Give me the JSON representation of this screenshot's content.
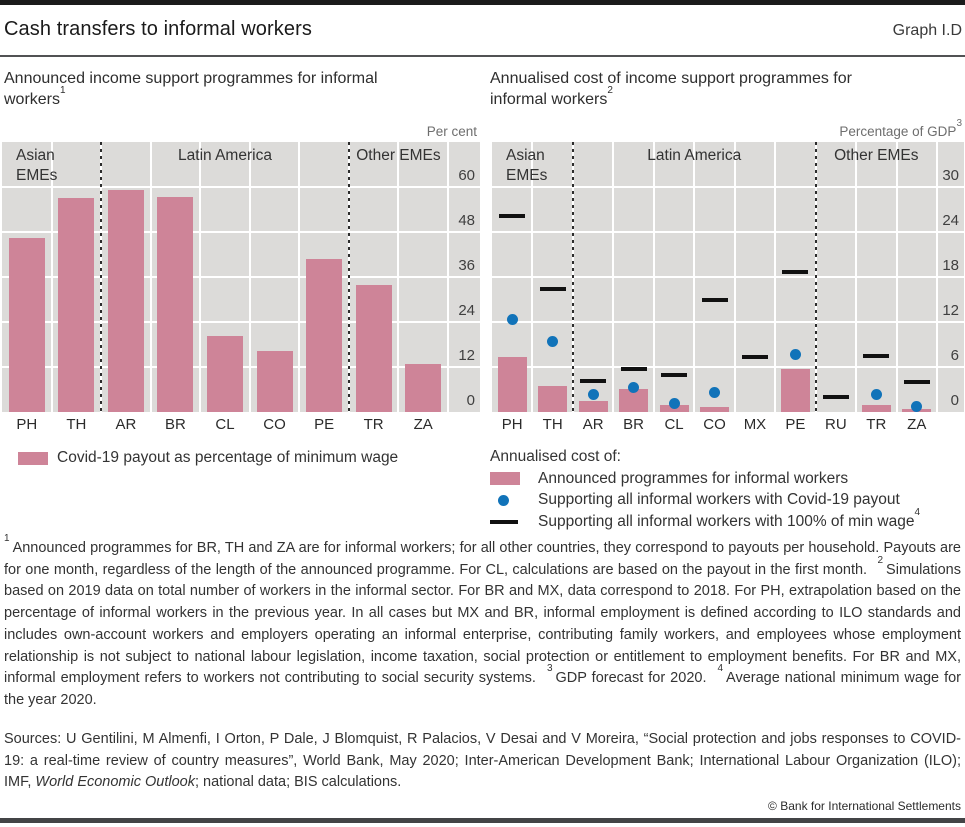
{
  "header": {
    "title": "Cash transfers to informal workers",
    "graph_label": "Graph I.D"
  },
  "left_panel": {
    "subtitle_text": "Announced income support programmes for informal workers",
    "subtitle_sup": "1",
    "unit_text": "Per cent",
    "legend": [
      {
        "marker": "bar-swatch",
        "label": "Covid-19 payout as percentage of minimum wage"
      }
    ]
  },
  "right_panel": {
    "subtitle_text": "Annualised cost of income support programmes for informal workers",
    "subtitle_sup": "2",
    "unit_text": "Percentage of GDP",
    "unit_sup": "3",
    "legend_title": "Annualised cost of:",
    "legend": [
      {
        "marker": "bar-swatch",
        "label": "Announced programmes for informal workers"
      },
      {
        "marker": "blue-dot",
        "label": "Supporting all informal workers with Covid-19 payout"
      },
      {
        "marker": "black-dash",
        "label": "Supporting all informal workers with 100% of min wage",
        "sup": "4"
      }
    ]
  },
  "chart_data": [
    {
      "type": "bar",
      "title": "Announced income support programmes for informal workers",
      "ylabel": "Per cent",
      "categories": [
        "PH",
        "TH",
        "AR",
        "BR",
        "CL",
        "CO",
        "PE",
        "TR",
        "ZA"
      ],
      "values": [
        46.5,
        57.2,
        59.2,
        57.3,
        20.2,
        16.4,
        40.8,
        34.0,
        12.7
      ],
      "series_label": "Covid-19 payout as percentage of minimum wage",
      "groups": [
        {
          "label": "Asian\nEMEs",
          "span": [
            0,
            1
          ],
          "align": "left"
        },
        {
          "label": "Latin America",
          "span": [
            2,
            6
          ],
          "align": "center"
        },
        {
          "label": "Other EMEs",
          "span": [
            7,
            8
          ],
          "align": "center"
        }
      ],
      "ylim": [
        0,
        72
      ],
      "yticks": [
        0,
        12,
        24,
        36,
        48,
        60
      ],
      "grid": true,
      "legend_position": "below"
    },
    {
      "type": "bar",
      "title": "Annualised cost of income support programmes for informal workers",
      "ylabel": "Percentage of GDP",
      "categories": [
        "PH",
        "TH",
        "AR",
        "BR",
        "CL",
        "CO",
        "MX",
        "PE",
        "RU",
        "TR",
        "ZA"
      ],
      "series": [
        {
          "name": "Announced programmes for informal workers",
          "marker": "bar",
          "values": [
            7.4,
            3.5,
            1.5,
            3.1,
            0.9,
            0.7,
            null,
            5.7,
            null,
            0.9,
            0.4
          ]
        },
        {
          "name": "Supporting all informal workers with Covid-19 payout",
          "marker": "dot",
          "values": [
            12.3,
            9.4,
            2.4,
            3.3,
            1.1,
            2.6,
            null,
            7.7,
            null,
            2.4,
            0.7
          ]
        },
        {
          "name": "Supporting all informal workers with 100% of min wage",
          "marker": "dash",
          "values": [
            26.2,
            16.4,
            4.1,
            5.7,
            4.9,
            15.0,
            7.3,
            18.7,
            2.0,
            7.5,
            4.0
          ]
        }
      ],
      "groups": [
        {
          "label": "Asian\nEMEs",
          "span": [
            0,
            1
          ],
          "align": "left"
        },
        {
          "label": "Latin America",
          "span": [
            2,
            7
          ],
          "align": "center"
        },
        {
          "label": "Other EMEs",
          "span": [
            8,
            10
          ],
          "align": "center"
        }
      ],
      "ylim": [
        0,
        36
      ],
      "yticks": [
        0,
        6,
        12,
        18,
        24,
        30
      ],
      "grid": true,
      "legend_position": "below"
    }
  ],
  "footnotes": [
    {
      "sup": "1",
      "text": "Announced programmes for BR, TH and ZA are for informal workers; for all other countries, they correspond to payouts per household. Payouts are for one month, regardless of the length of the announced programme. For CL, calculations are based on the payout in the first month."
    },
    {
      "sup": "2",
      "text": "Simulations based on 2019 data on total number of workers in the informal sector. For BR and MX, data correspond to 2018. For PH, extrapolation based on the percentage of informal workers in the previous year. In all cases but MX and BR, informal employment is defined according to ILO standards and includes own-account workers and employers operating an informal enterprise, contributing family workers, and employees whose employment relationship is not subject to national labour legislation, income taxation, social protection or entitlement to employment benefits. For BR and MX, informal employment refers to workers not contributing to social security systems."
    },
    {
      "sup": "3",
      "text": "GDP forecast for 2020."
    },
    {
      "sup": "4",
      "text": "Average national minimum wage for the year 2020."
    }
  ],
  "sources_segments": [
    {
      "text": "Sources: U Gentilini, M Almenfi, I Orton, P Dale, J Blomquist, R Palacios, V Desai and V Moreira, “Social protection and jobs responses to COVID-19: a real-time review of country measures”, World Bank, May 2020; Inter-American Development Bank; International Labour Organization (ILO); IMF, ",
      "italic": false
    },
    {
      "text": "World Economic Outlook",
      "italic": true
    },
    {
      "text": "; national data; BIS calculations.",
      "italic": false
    }
  ],
  "copyright": "© Bank for International Settlements",
  "colors": {
    "bar_pink": "#ce8498",
    "dot_blue": "#1173b9",
    "dash_black": "#111111",
    "plot_background": "#dcdbd9",
    "gridline": "#ffffff",
    "top_bar": "#1b1b1b",
    "bottom_bar": "#434446"
  }
}
